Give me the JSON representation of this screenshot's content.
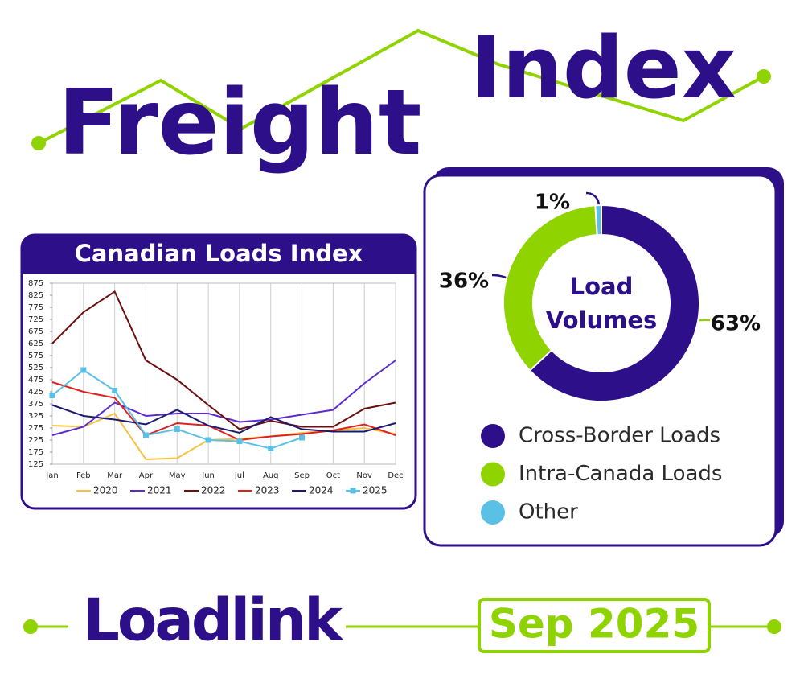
{
  "header": {
    "words": [
      "Freight",
      "Index"
    ]
  },
  "chart_data": [
    {
      "type": "line",
      "title": "Canadian Loads Index",
      "categories": [
        "Jan",
        "Feb",
        "Mar",
        "Apr",
        "May",
        "Jun",
        "Jul",
        "Aug",
        "Sep",
        "Oct",
        "Nov",
        "Dec"
      ],
      "series": [
        {
          "name": "2020",
          "color": "#f5c242",
          "values": [
            285,
            280,
            335,
            145,
            150,
            225,
            230,
            240,
            255,
            265,
            275,
            250
          ]
        },
        {
          "name": "2021",
          "color": "#5b2bd1",
          "values": [
            245,
            280,
            380,
            325,
            335,
            335,
            300,
            310,
            330,
            350,
            460,
            555
          ]
        },
        {
          "name": "2022",
          "color": "#6b0f0f",
          "values": [
            625,
            755,
            840,
            555,
            475,
            370,
            270,
            305,
            280,
            280,
            355,
            380
          ]
        },
        {
          "name": "2023",
          "color": "#e02020",
          "values": [
            465,
            425,
            400,
            245,
            295,
            285,
            225,
            240,
            250,
            265,
            290,
            245
          ]
        },
        {
          "name": "2024",
          "color": "#1a1a6e",
          "values": [
            370,
            325,
            310,
            290,
            350,
            285,
            255,
            320,
            270,
            260,
            260,
            295
          ]
        },
        {
          "name": "2025",
          "color": "#5bc0e6",
          "marker": "square",
          "values": [
            410,
            515,
            430,
            245,
            270,
            225,
            220,
            190,
            235,
            null,
            null,
            null
          ]
        }
      ],
      "ylim": [
        125,
        875
      ],
      "yticks": [
        125,
        175,
        225,
        275,
        325,
        375,
        425,
        475,
        525,
        575,
        625,
        675,
        725,
        775,
        825,
        875
      ],
      "grid": true,
      "legend": "bottom"
    },
    {
      "type": "donut",
      "title": "Load Volumes",
      "categories": [
        "Cross-Border Loads",
        "Intra-Canada Loads",
        "Other"
      ],
      "values": [
        63,
        36,
        1
      ],
      "value_labels": [
        "63%",
        "36%",
        "1%"
      ],
      "colors": [
        "#2e0f8a",
        "#8fd400",
        "#5bc0e6"
      ],
      "legend": "bottom"
    }
  ],
  "footer": {
    "brand": "Loadlink",
    "date": "Sep 2025"
  }
}
